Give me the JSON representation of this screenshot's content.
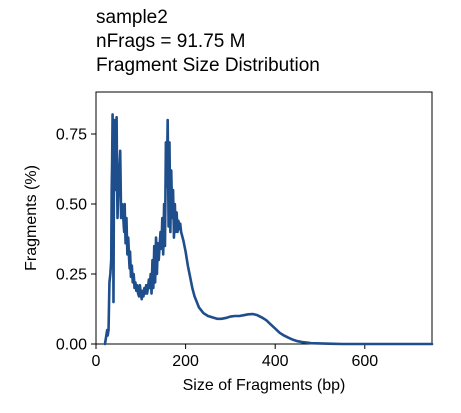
{
  "chart_data": {
    "type": "line",
    "title_lines": [
      "sample2",
      "nFrags = 91.75 M",
      "Fragment Size Distribution"
    ],
    "xlabel": "Size of Fragments (bp)",
    "ylabel": "Fragments (%)",
    "xlim": [
      0,
      750
    ],
    "ylim": [
      0,
      0.9
    ],
    "xticks": [
      0,
      200,
      400,
      600
    ],
    "xtick_labels": [
      "0",
      "200",
      "400",
      "600"
    ],
    "yticks": [
      0,
      0.25,
      0.5,
      0.75
    ],
    "ytick_labels": [
      "0.00",
      "0.25",
      "0.50",
      "0.75"
    ],
    "grid": false,
    "colors": {
      "line": "#1f4e8c",
      "axis": "#000000"
    },
    "series": [
      {
        "x": [
          20,
          22,
          24,
          25,
          26,
          28,
          30,
          32,
          34,
          35,
          36,
          37,
          38,
          39,
          40,
          41,
          42,
          43,
          44,
          45,
          46,
          47,
          48,
          50,
          52,
          54,
          55,
          56,
          58,
          60,
          62,
          63,
          64,
          66,
          68,
          70,
          72,
          74,
          75,
          76,
          78,
          80,
          82,
          84,
          85,
          86,
          88,
          90,
          92,
          94,
          96,
          98,
          100,
          102,
          104,
          106,
          108,
          110,
          112,
          114,
          116,
          118,
          120,
          122,
          124,
          126,
          128,
          130,
          132,
          134,
          136,
          138,
          140,
          142,
          144,
          146,
          148,
          150,
          152,
          154,
          156,
          158,
          160,
          162,
          164,
          166,
          168,
          170,
          172,
          174,
          176,
          178,
          180,
          182,
          184,
          186,
          188,
          190,
          195,
          200,
          205,
          210,
          215,
          220,
          225,
          230,
          240,
          250,
          260,
          270,
          280,
          290,
          300,
          310,
          320,
          330,
          340,
          350,
          360,
          370,
          380,
          390,
          400,
          410,
          420,
          430,
          440,
          450,
          460,
          470,
          480,
          500,
          520,
          550,
          600,
          650,
          700,
          750
        ],
        "y": [
          0.0,
          0.02,
          0.04,
          0.05,
          0.03,
          0.05,
          0.22,
          0.25,
          0.3,
          0.55,
          0.65,
          0.82,
          0.7,
          0.15,
          0.55,
          0.8,
          0.72,
          0.55,
          0.6,
          0.78,
          0.81,
          0.6,
          0.45,
          0.55,
          0.62,
          0.69,
          0.58,
          0.45,
          0.5,
          0.48,
          0.42,
          0.4,
          0.5,
          0.36,
          0.45,
          0.32,
          0.38,
          0.3,
          0.27,
          0.33,
          0.24,
          0.28,
          0.22,
          0.25,
          0.23,
          0.2,
          0.22,
          0.19,
          0.21,
          0.18,
          0.17,
          0.21,
          0.18,
          0.16,
          0.19,
          0.17,
          0.2,
          0.18,
          0.21,
          0.18,
          0.2,
          0.23,
          0.2,
          0.25,
          0.18,
          0.3,
          0.2,
          0.35,
          0.22,
          0.38,
          0.25,
          0.36,
          0.3,
          0.35,
          0.4,
          0.34,
          0.45,
          0.32,
          0.5,
          0.35,
          0.72,
          0.56,
          0.8,
          0.42,
          0.72,
          0.4,
          0.62,
          0.45,
          0.55,
          0.38,
          0.5,
          0.4,
          0.47,
          0.4,
          0.44,
          0.41,
          0.43,
          0.4,
          0.37,
          0.33,
          0.28,
          0.24,
          0.2,
          0.17,
          0.15,
          0.13,
          0.11,
          0.1,
          0.095,
          0.09,
          0.09,
          0.093,
          0.098,
          0.1,
          0.1,
          0.103,
          0.106,
          0.107,
          0.103,
          0.095,
          0.085,
          0.07,
          0.055,
          0.04,
          0.03,
          0.022,
          0.015,
          0.01,
          0.007,
          0.005,
          0.003,
          0.002,
          0.001,
          0.0,
          0.0,
          0.0,
          0.0,
          0.0
        ]
      }
    ]
  }
}
